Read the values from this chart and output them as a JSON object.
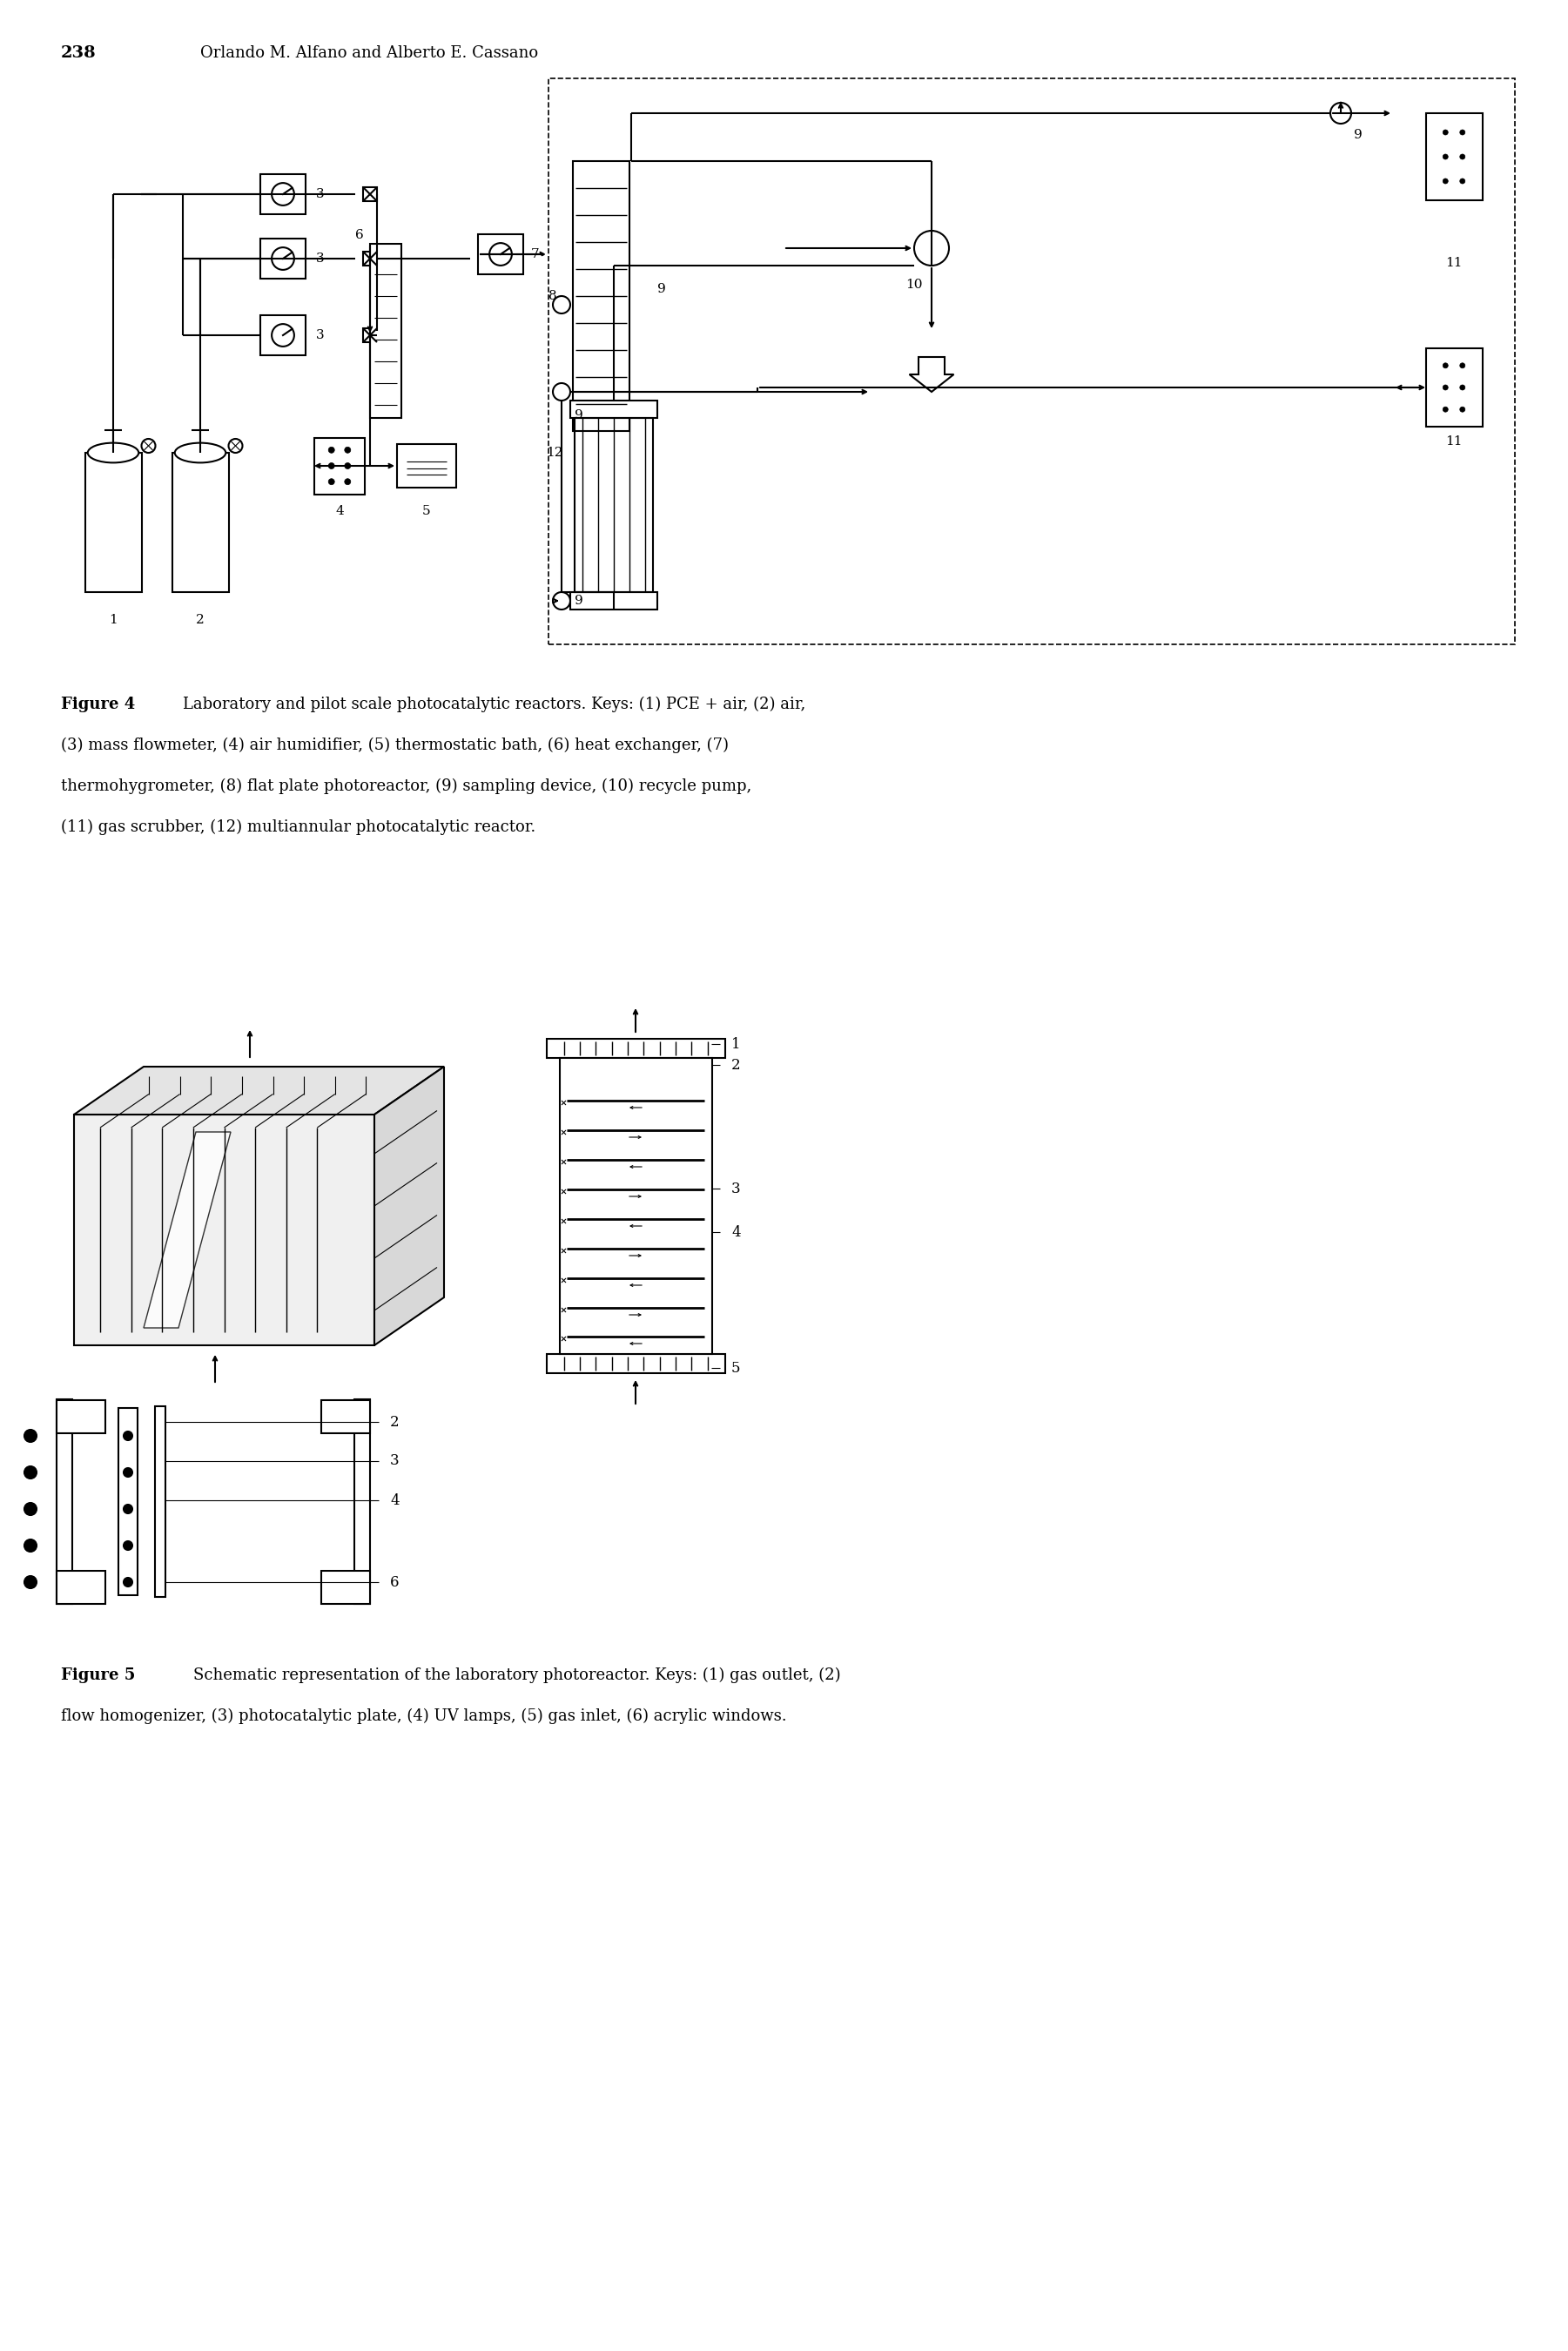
{
  "page_number": "238",
  "header_author": "Orlando M. Alfano and Alberto E. Cassano",
  "fig4_caption_line1_bold": "Figure 4",
  "fig4_caption_line1": "   Laboratory and pilot scale photocatalytic reactors. Keys: (1) PCE + air, (2) air,",
  "fig4_caption_line2": "(3) mass flowmeter, (4) air humidifier, (5) thermostatic bath, (6) heat exchanger, (7)",
  "fig4_caption_line3": "thermohygrometer, (8) flat plate photoreactor, (9) sampling device, (10) recycle pump,",
  "fig4_caption_line4": "(11) gas scrubber, (12) multiannular photocatalytic reactor.",
  "fig5_caption_line1_bold": "Figure 5",
  "fig5_caption_line1": "   Schematic representation of the laboratory photoreactor. Keys: (1) gas outlet, (2)",
  "fig5_caption_line2": "flow homogenizer, (3) photocatalytic plate, (4) UV lamps, (5) gas inlet, (6) acrylic windows.",
  "bg_color": "#ffffff",
  "line_color": "#000000"
}
